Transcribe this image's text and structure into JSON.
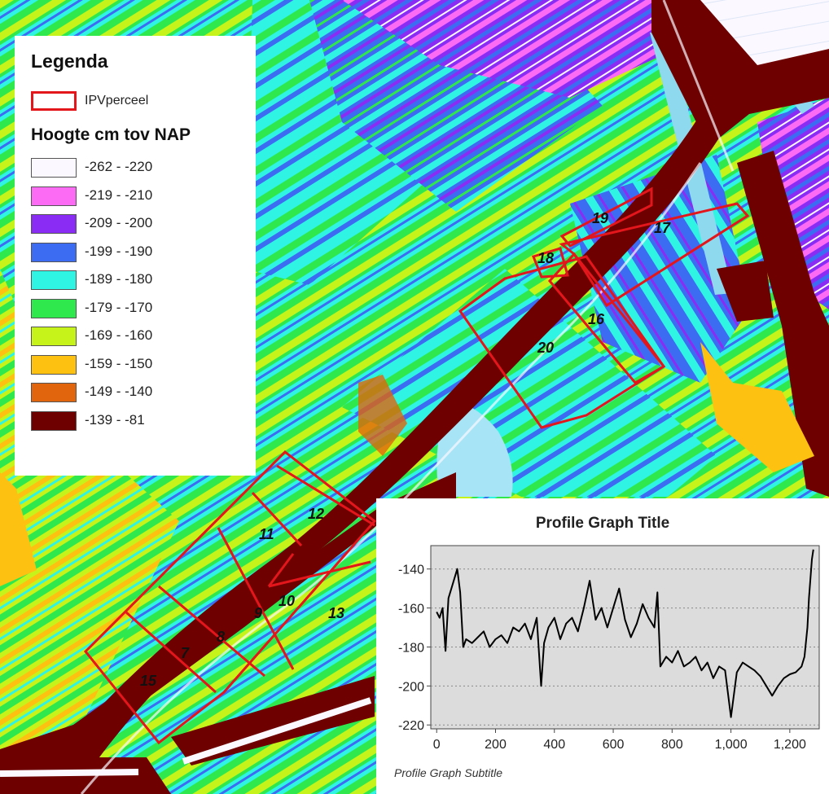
{
  "legend": {
    "title": "Legenda",
    "parcel_label": "IPVperceel",
    "parcel_color": "#e3161c",
    "subtitle": "Hoogte cm tov  NAP",
    "classes": [
      {
        "label": "-262 - -220",
        "color": "#fbf8ff"
      },
      {
        "label": "-219 - -210",
        "color": "#fb6bf4"
      },
      {
        "label": "-209 - -200",
        "color": "#8b2cf4"
      },
      {
        "label": "-199 - -190",
        "color": "#3c6cf2"
      },
      {
        "label": "-189 - -180",
        "color": "#2ff4e4"
      },
      {
        "label": "-179 - -170",
        "color": "#2ee84d"
      },
      {
        "label": "-169 - -160",
        "color": "#c6f41a"
      },
      {
        "label": "-159 - -150",
        "color": "#fdc112"
      },
      {
        "label": "-149 - -140",
        "color": "#e0650d"
      },
      {
        "label": "-139 - -81",
        "color": "#6e0000"
      }
    ]
  },
  "parcels": [
    "7",
    "8",
    "9",
    "10",
    "11",
    "12",
    "13",
    "15",
    "16",
    "17",
    "18",
    "19",
    "20"
  ],
  "graph": {
    "title": "Profile Graph Title",
    "subtitle": "Profile Graph Subtitle"
  },
  "chart_data": {
    "type": "line",
    "title": "Profile Graph Title",
    "subtitle": "Profile Graph Subtitle",
    "xlabel": "",
    "ylabel": "",
    "xlim": [
      -20,
      1300
    ],
    "ylim": [
      -222,
      -128
    ],
    "xticks": [
      0,
      200,
      400,
      600,
      800,
      1000,
      1200
    ],
    "xtick_labels": [
      "0",
      "200",
      "400",
      "600",
      "800",
      "1,000",
      "1,200"
    ],
    "yticks": [
      -140,
      -160,
      -180,
      -200,
      -220
    ],
    "ytick_labels": [
      "-140",
      "-160",
      "-180",
      "-200",
      "-220"
    ],
    "grid": "horizontal dotted",
    "series": [
      {
        "color": "#000000",
        "x": [
          0,
          10,
          20,
          30,
          40,
          50,
          60,
          70,
          80,
          90,
          100,
          120,
          140,
          160,
          180,
          200,
          220,
          240,
          260,
          280,
          300,
          320,
          340,
          355,
          365,
          380,
          400,
          420,
          440,
          460,
          480,
          500,
          520,
          540,
          560,
          580,
          600,
          620,
          640,
          660,
          680,
          700,
          720,
          740,
          750,
          760,
          780,
          800,
          820,
          840,
          860,
          880,
          900,
          920,
          940,
          960,
          980,
          1000,
          1020,
          1040,
          1060,
          1080,
          1100,
          1120,
          1140,
          1160,
          1180,
          1200,
          1220,
          1240,
          1250,
          1260,
          1265,
          1270,
          1275,
          1280
        ],
        "y": [
          -162,
          -165,
          -160,
          -182,
          -155,
          -150,
          -145,
          -140,
          -152,
          -180,
          -176,
          -178,
          -175,
          -172,
          -180,
          -176,
          -174,
          -178,
          -170,
          -172,
          -168,
          -176,
          -165,
          -200,
          -178,
          -170,
          -165,
          -176,
          -168,
          -165,
          -172,
          -160,
          -146,
          -166,
          -160,
          -170,
          -160,
          -150,
          -166,
          -175,
          -168,
          -158,
          -165,
          -170,
          -152,
          -190,
          -185,
          -188,
          -182,
          -190,
          -188,
          -185,
          -192,
          -188,
          -196,
          -190,
          -192,
          -216,
          -193,
          -188,
          -190,
          -192,
          -195,
          -200,
          -205,
          -200,
          -196,
          -194,
          -193,
          -190,
          -185,
          -170,
          -155,
          -145,
          -135,
          -130
        ]
      }
    ]
  }
}
